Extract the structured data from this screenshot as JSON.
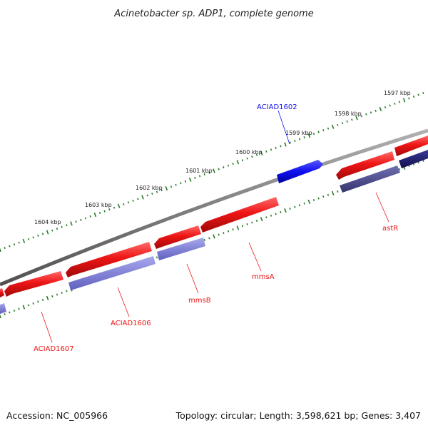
{
  "title": "Acinetobacter sp. ADP1, complete genome",
  "ruler": {
    "tick_color": "#2a7a2a",
    "labels": [
      "1597 kbp",
      "1598 kbp",
      "1599 kbp",
      "1600 kbp",
      "1601 kbp",
      "1602 kbp",
      "1603 kbp",
      "1604 kbp"
    ]
  },
  "backbone_color": "#808080",
  "tracks": {
    "forward": {
      "features": [
        {
          "name": "ACIAD1602",
          "color": "#1010ee",
          "labeled": true
        },
        {
          "name": "",
          "color": "#1a1a6e",
          "labeled": false
        }
      ]
    },
    "reverse": {
      "features": [
        {
          "name": "astR",
          "color": "#ee1515",
          "labeled": true
        },
        {
          "name": "",
          "color": "#ee1515",
          "labeled": false
        },
        {
          "name": "mmsA",
          "color": "#ee1515",
          "labeled": true
        },
        {
          "name": "mmsB",
          "color": "#ee1515",
          "labeled": true
        },
        {
          "name": "ACIAD1606",
          "color": "#ee1515",
          "labeled": true
        },
        {
          "name": "ACIAD1607",
          "color": "#ee1515",
          "labeled": true
        },
        {
          "name": "",
          "color": "#ee1515",
          "labeled": false
        }
      ]
    },
    "cog": {
      "features": [
        {
          "color": "#4a4a8a"
        },
        {
          "color": "#1a1a6e"
        },
        {
          "color": "#8080dd"
        },
        {
          "color": "#7070cc"
        },
        {
          "color": "#7070cc"
        }
      ]
    }
  },
  "footer": {
    "accession": "Accession: NC_005966",
    "topology": "Topology: circular; Length: 3,598,621 bp; Genes: 3,407"
  }
}
